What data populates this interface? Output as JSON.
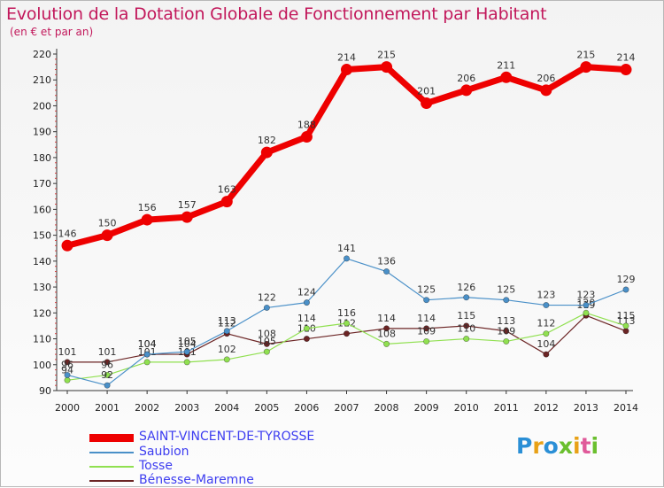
{
  "title": "Evolution de la Dotation Globale de Fonctionnement par Habitant",
  "subtitle": "(en € et par an)",
  "logo": {
    "text": "Proxiti",
    "colors": [
      "#2a8fd6",
      "#e8a117",
      "#2a8fd6",
      "#6abf2e",
      "#e8a117",
      "#e05a9a",
      "#6abf2e"
    ]
  },
  "chart_data": {
    "type": "line",
    "title": "Evolution de la Dotation Globale de Fonctionnement par Habitant",
    "subtitle": "(en € et par an)",
    "xlabel": "",
    "ylabel": "",
    "x": [
      "2000",
      "2001",
      "2002",
      "2003",
      "2004",
      "2005",
      "2006",
      "2007",
      "2008",
      "2009",
      "2010",
      "2011",
      "2012",
      "2013",
      "2014"
    ],
    "ylim": [
      90,
      220
    ],
    "yticks": [
      90,
      100,
      110,
      120,
      130,
      140,
      150,
      160,
      170,
      180,
      190,
      200,
      210,
      220
    ],
    "grid": false,
    "legend_position": "bottom-left",
    "series": [
      {
        "name": "SAINT-VINCENT-DE-TYROSSE",
        "color": "#ee0000",
        "values": [
          146,
          150,
          156,
          157,
          163,
          182,
          188,
          214,
          215,
          201,
          206,
          211,
          206,
          215,
          214
        ]
      },
      {
        "name": "Saubion",
        "color": "#4a90c8",
        "values": [
          96,
          92,
          104,
          105,
          113,
          122,
          124,
          141,
          136,
          125,
          126,
          125,
          123,
          123,
          129
        ]
      },
      {
        "name": "Tosse",
        "color": "#90e050",
        "values": [
          94,
          96,
          101,
          101,
          102,
          105,
          114,
          116,
          108,
          109,
          110,
          109,
          112,
          120,
          115
        ]
      },
      {
        "name": "Bénesse-Maremne",
        "color": "#6b2424",
        "values": [
          101,
          101,
          104,
          104,
          112,
          108,
          110,
          112,
          114,
          114,
          115,
          113,
          104,
          119,
          113
        ]
      }
    ]
  }
}
